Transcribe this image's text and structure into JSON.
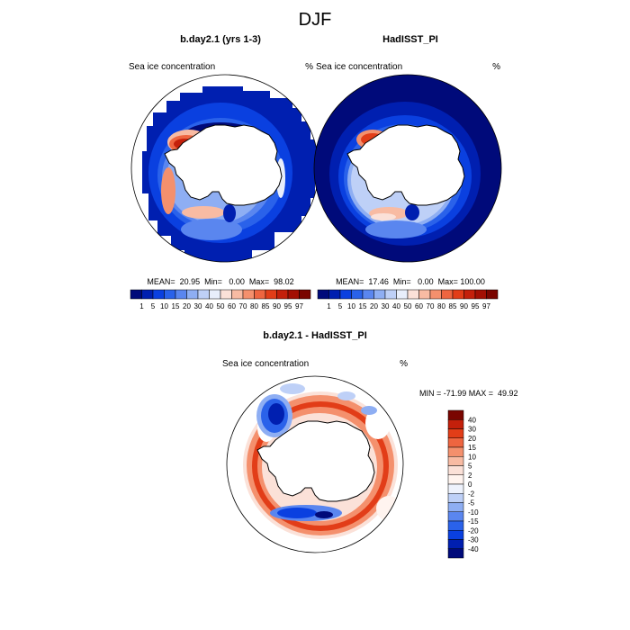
{
  "chart_data": {
    "type": "polar_map",
    "title": "DJF",
    "variable": "Sea ice concentration",
    "units": "%",
    "panels": [
      {
        "key": "model",
        "title": "b.day2.1 (yrs 1-3)",
        "left_label": "Sea ice concentration",
        "right_label": "%",
        "stats": "MEAN=  20.95  Min=   0.00  Max=  98.02",
        "mean": 20.95,
        "min": 0.0,
        "max": 98.02
      },
      {
        "key": "obs",
        "title": "HadISST_PI",
        "left_label": "Sea ice concentration",
        "right_label": "%",
        "stats": "MEAN=  17.46  Min=   0.00  Max= 100.00",
        "mean": 17.46,
        "min": 0.0,
        "max": 100.0
      },
      {
        "key": "diff",
        "title": "b.day2.1 - HadISST_PI",
        "left_label": "Sea ice concentration",
        "right_label": "%",
        "stats": "MIN = -71.99 MAX =  49.92",
        "min": -71.99,
        "max": 49.92
      }
    ],
    "concentration_colorbar": {
      "levels": [
        "1",
        "5",
        "10",
        "15",
        "20",
        "30",
        "40",
        "50",
        "60",
        "70",
        "80",
        "85",
        "90",
        "95",
        "97"
      ],
      "colors": [
        "#000a7a",
        "#001fb0",
        "#0a40e0",
        "#2a62ea",
        "#5a86ef",
        "#8eaef3",
        "#bed0f7",
        "#e8eefb",
        "#fbe1d8",
        "#f8bba3",
        "#f4906d",
        "#ee6540",
        "#e23d18",
        "#c4200b",
        "#a30f03",
        "#7a0500"
      ]
    },
    "difference_colorbar": {
      "levels": [
        "40",
        "30",
        "20",
        "15",
        "10",
        "5",
        "2",
        "0",
        "-2",
        "-5",
        "-10",
        "-15",
        "-20",
        "-30",
        "-40"
      ],
      "colors": [
        "#7a0500",
        "#c4200b",
        "#e23d18",
        "#ee6540",
        "#f4906d",
        "#f8bba3",
        "#fbe1d8",
        "#fff4ef",
        "#eef2fc",
        "#bed0f7",
        "#8eaef3",
        "#5a86ef",
        "#2a62ea",
        "#0a40e0",
        "#001fb0",
        "#000a7a"
      ]
    }
  }
}
